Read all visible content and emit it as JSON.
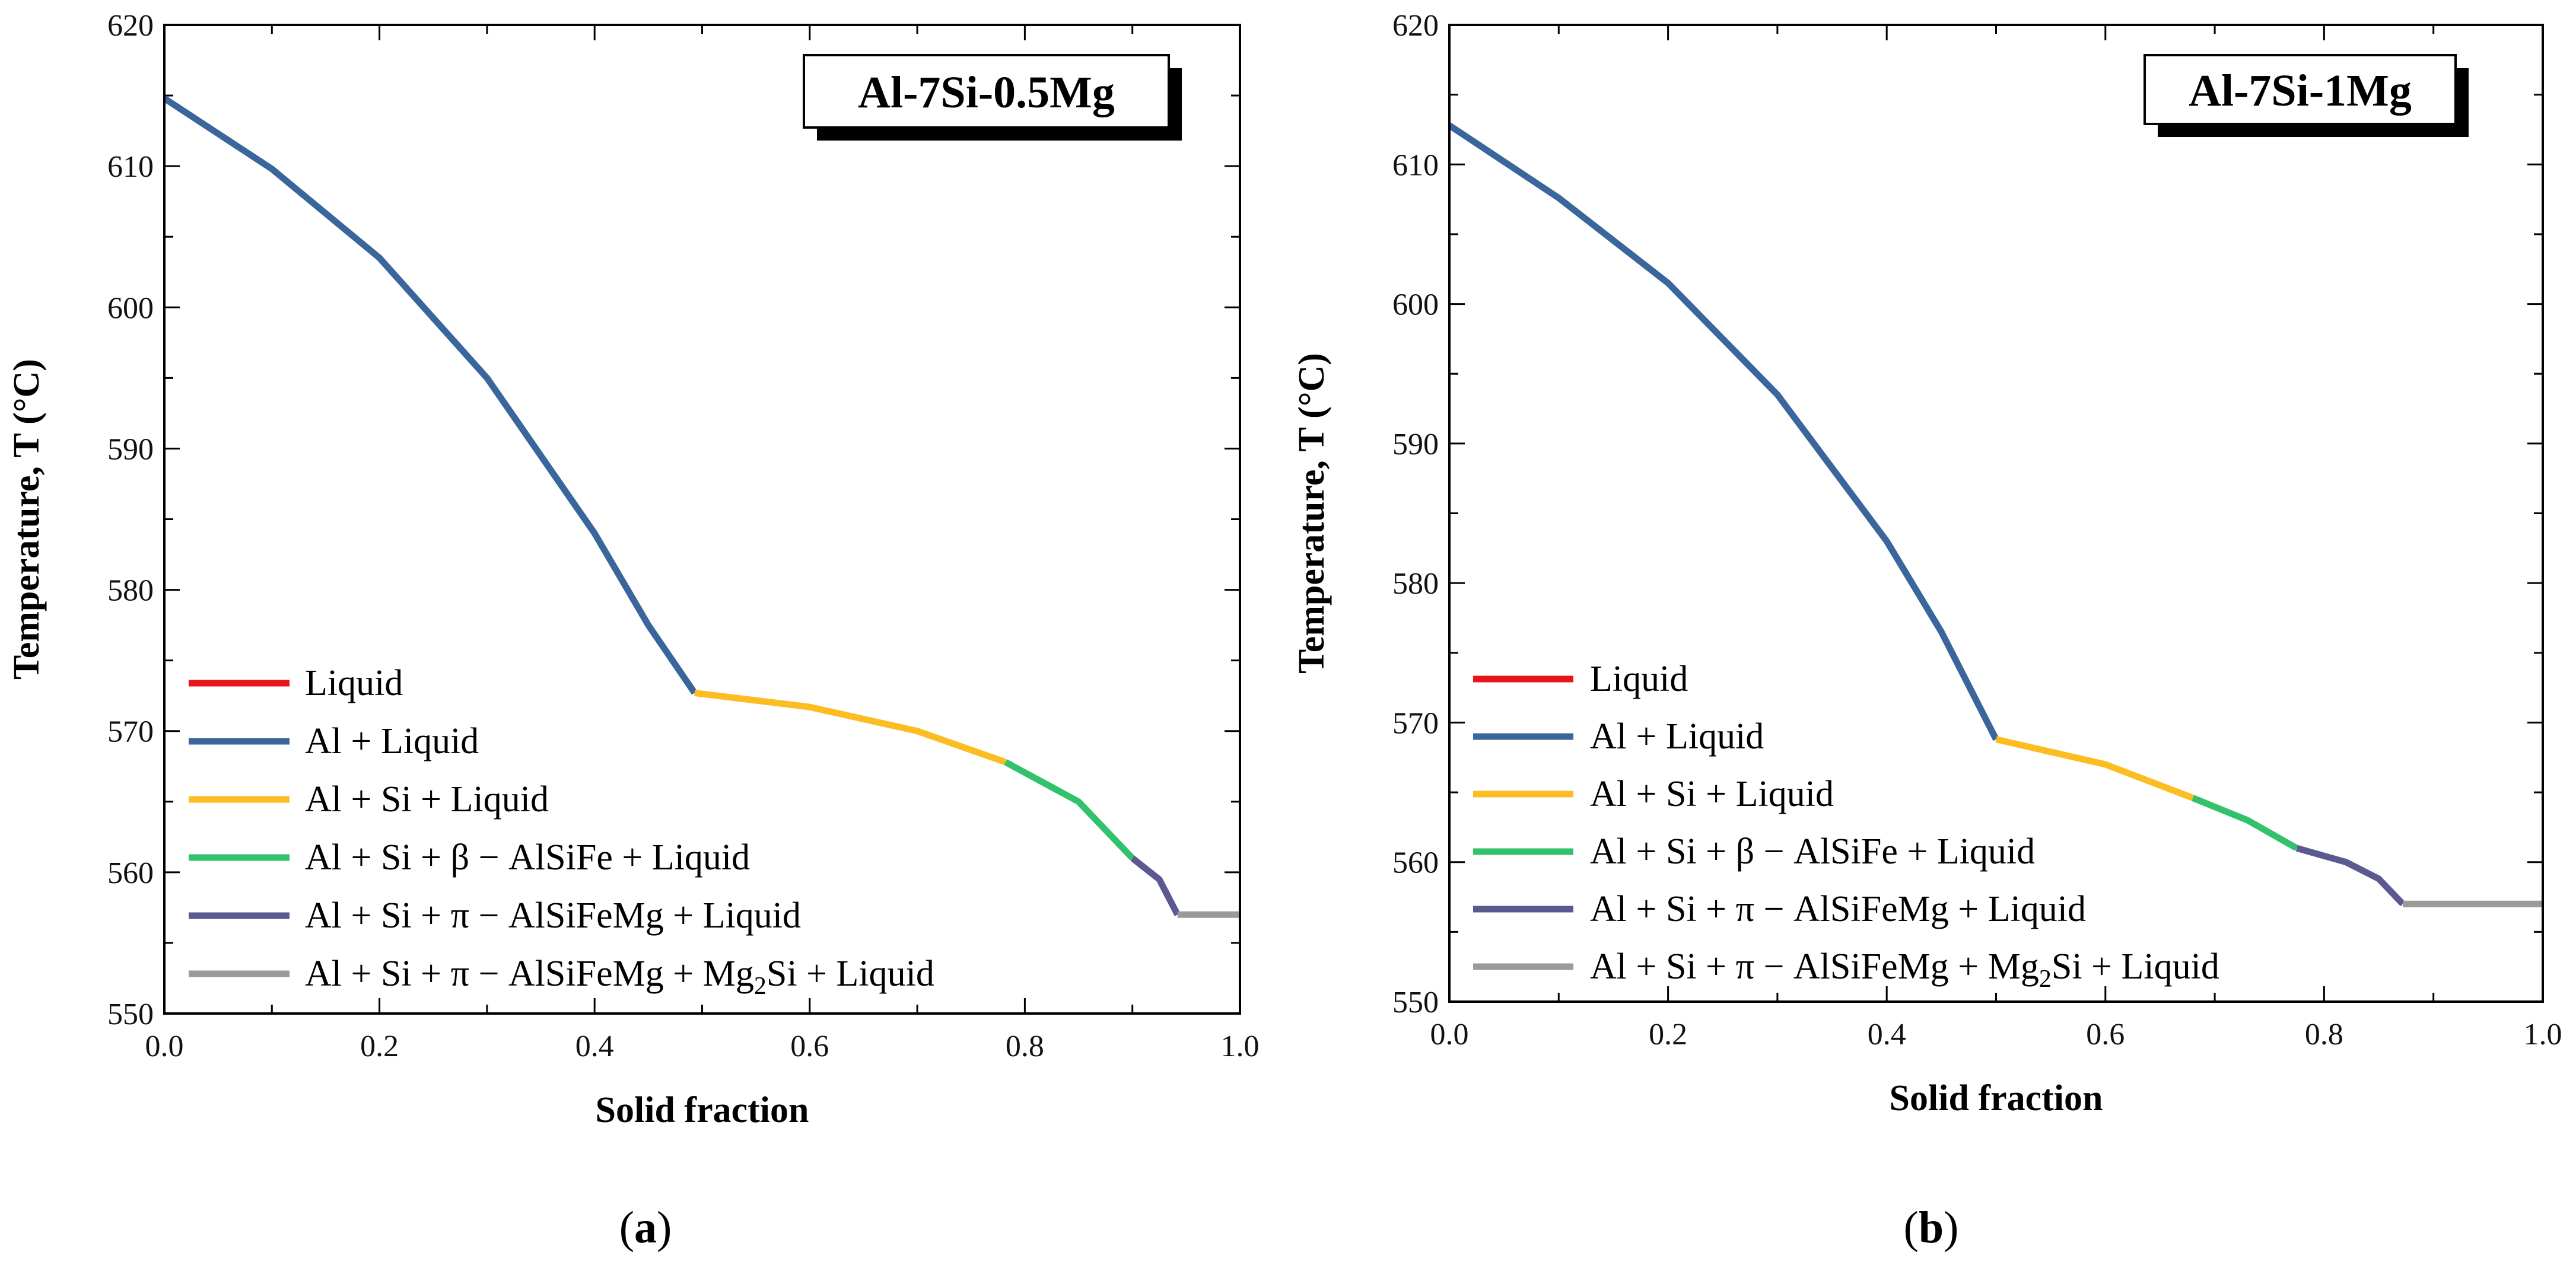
{
  "figure": {
    "colors": {
      "Liquid": "#e8141c",
      "Al + Liquid": "#3a669b",
      "Al + Si + Liquid": "#fbbd21",
      "beta": "#32c26b",
      "pi": "#5c5990",
      "mg2si": "#9a9a9a"
    }
  },
  "chart_data": [
    {
      "type": "line",
      "panel_label": {
        "open": "(",
        "letter": "a",
        "close": ")"
      },
      "badge": "Al-7Si-0.5Mg",
      "xlabel": "Solid fraction",
      "ylabel": "Temperature, T (°C)",
      "xlim": [
        0,
        1
      ],
      "ylim": [
        550,
        620
      ],
      "xticks": [
        0.0,
        0.2,
        0.4,
        0.6,
        0.8,
        1.0
      ],
      "xtick_labels": [
        "0.0",
        "0.2",
        "0.4",
        "0.6",
        "0.8",
        "1.0"
      ],
      "yticks": [
        550,
        560,
        570,
        580,
        590,
        600,
        610,
        620
      ],
      "ytick_labels": [
        "550",
        "560",
        "570",
        "580",
        "590",
        "600",
        "610",
        "620"
      ],
      "legend": [
        {
          "key": "Liquid",
          "parts": [
            {
              "t": "Liquid"
            }
          ]
        },
        {
          "key": "Al + Liquid",
          "parts": [
            {
              "t": "Al + Liquid"
            }
          ]
        },
        {
          "key": "Al + Si + Liquid",
          "parts": [
            {
              "t": "Al + Si + Liquid"
            }
          ]
        },
        {
          "key": "beta",
          "parts": [
            {
              "t": "Al + Si + β − AlSiFe + Liquid"
            }
          ]
        },
        {
          "key": "pi",
          "parts": [
            {
              "t": "Al + Si + π − AlSiFeMg + Liquid"
            }
          ]
        },
        {
          "key": "mg2si",
          "parts": [
            {
              "t": "Al + Si + π − AlSiFeMg + Mg"
            },
            {
              "t": "2",
              "sub": true
            },
            {
              "t": "Si + Liquid"
            }
          ]
        }
      ],
      "series": [
        {
          "name": "Liquid",
          "key": "Liquid",
          "x": [
            0.0
          ],
          "y": [
            614.8
          ]
        },
        {
          "name": "Al + Liquid",
          "key": "Al + Liquid",
          "x": [
            0.0,
            0.1,
            0.2,
            0.3,
            0.4,
            0.45,
            0.493
          ],
          "y": [
            614.8,
            609.8,
            603.5,
            595.0,
            584.0,
            577.5,
            572.7
          ]
        },
        {
          "name": "Al + Si + Liquid",
          "key": "Al + Si + Liquid",
          "x": [
            0.493,
            0.6,
            0.7,
            0.782
          ],
          "y": [
            572.7,
            571.7,
            570.0,
            567.8
          ]
        },
        {
          "name": "Al + Si + β − AlSiFe + Liquid",
          "key": "beta",
          "x": [
            0.782,
            0.85,
            0.9
          ],
          "y": [
            567.8,
            565.0,
            561.0
          ]
        },
        {
          "name": "Al + Si + π − AlSiFeMg + Liquid",
          "key": "pi",
          "x": [
            0.9,
            0.925,
            0.942
          ],
          "y": [
            561.0,
            559.5,
            557.0
          ]
        },
        {
          "name": "Al + Si + π − AlSiFeMg + Mg2Si + Liquid",
          "key": "mg2si",
          "x": [
            0.942,
            1.0
          ],
          "y": [
            557.0,
            557.0
          ]
        }
      ]
    },
    {
      "type": "line",
      "panel_label": {
        "open": "(",
        "letter": "b",
        "close": ")"
      },
      "badge": "Al-7Si-1Mg",
      "xlabel": "Solid fraction",
      "ylabel": "Temperature, T (°C)",
      "xlim": [
        0,
        1
      ],
      "ylim": [
        550,
        620
      ],
      "xticks": [
        0.0,
        0.2,
        0.4,
        0.6,
        0.8,
        1.0
      ],
      "xtick_labels": [
        "0.0",
        "0.2",
        "0.4",
        "0.6",
        "0.8",
        "1.0"
      ],
      "yticks": [
        550,
        560,
        570,
        580,
        590,
        600,
        610,
        620
      ],
      "ytick_labels": [
        "550",
        "560",
        "570",
        "580",
        "590",
        "600",
        "610",
        "620"
      ],
      "legend": [
        {
          "key": "Liquid",
          "parts": [
            {
              "t": "Liquid"
            }
          ]
        },
        {
          "key": "Al + Liquid",
          "parts": [
            {
              "t": "Al + Liquid"
            }
          ]
        },
        {
          "key": "Al + Si + Liquid",
          "parts": [
            {
              "t": "Al + Si + Liquid"
            }
          ]
        },
        {
          "key": "beta",
          "parts": [
            {
              "t": "Al + Si + β − AlSiFe + Liquid"
            }
          ]
        },
        {
          "key": "pi",
          "parts": [
            {
              "t": "Al + Si + π − AlSiFeMg + Liquid"
            }
          ]
        },
        {
          "key": "mg2si",
          "parts": [
            {
              "t": "Al + Si + π − AlSiFeMg + Mg"
            },
            {
              "t": "2",
              "sub": true
            },
            {
              "t": "Si + Liquid"
            }
          ]
        }
      ],
      "series": [
        {
          "name": "Liquid",
          "key": "Liquid",
          "x": [
            0.0
          ],
          "y": [
            612.8
          ]
        },
        {
          "name": "Al + Liquid",
          "key": "Al + Liquid",
          "x": [
            0.0,
            0.1,
            0.2,
            0.3,
            0.4,
            0.45,
            0.5
          ],
          "y": [
            612.8,
            607.6,
            601.5,
            593.5,
            583.0,
            576.5,
            568.8
          ]
        },
        {
          "name": "Al + Si + Liquid",
          "key": "Al + Si + Liquid",
          "x": [
            0.5,
            0.6,
            0.68
          ],
          "y": [
            568.8,
            567.0,
            564.6
          ]
        },
        {
          "name": "Al + Si + β − AlSiFe + Liquid",
          "key": "beta",
          "x": [
            0.68,
            0.73,
            0.775
          ],
          "y": [
            564.6,
            563.0,
            561.0
          ]
        },
        {
          "name": "Al + Si + π − AlSiFeMg + Liquid",
          "key": "pi",
          "x": [
            0.775,
            0.82,
            0.85,
            0.872
          ],
          "y": [
            561.0,
            560.0,
            558.8,
            557.0
          ]
        },
        {
          "name": "Al + Si + π − AlSiFeMg + Mg2Si + Liquid",
          "key": "mg2si",
          "x": [
            0.872,
            1.0
          ],
          "y": [
            557.0,
            557.0
          ]
        }
      ]
    }
  ]
}
